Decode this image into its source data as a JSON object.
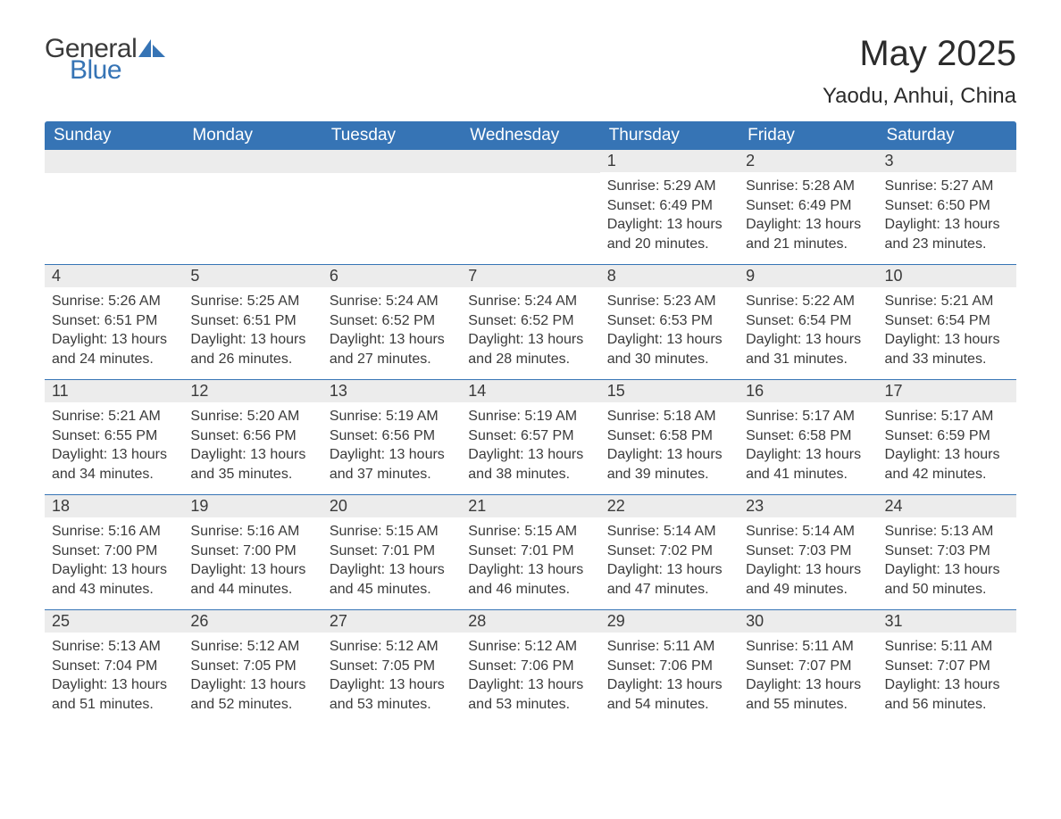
{
  "logo": {
    "text1": "General",
    "text2": "Blue"
  },
  "title": "May 2025",
  "location": "Yaodu, Anhui, China",
  "colors": {
    "header_bg": "#3674b5",
    "header_text": "#ffffff",
    "day_number_bg": "#ececec",
    "row_divider": "#3674b5",
    "body_text": "#3a3a3a",
    "logo_blue": "#3674b5",
    "page_bg": "#ffffff"
  },
  "typography": {
    "title_fontsize": 40,
    "location_fontsize": 24,
    "weekday_fontsize": 19,
    "daynum_fontsize": 18,
    "body_fontsize": 16,
    "logo_fontsize": 30
  },
  "weekdays": [
    "Sunday",
    "Monday",
    "Tuesday",
    "Wednesday",
    "Thursday",
    "Friday",
    "Saturday"
  ],
  "weeks": [
    [
      {
        "n": "",
        "sunrise": "",
        "sunset": "",
        "daylight": ""
      },
      {
        "n": "",
        "sunrise": "",
        "sunset": "",
        "daylight": ""
      },
      {
        "n": "",
        "sunrise": "",
        "sunset": "",
        "daylight": ""
      },
      {
        "n": "",
        "sunrise": "",
        "sunset": "",
        "daylight": ""
      },
      {
        "n": "1",
        "sunrise": "Sunrise: 5:29 AM",
        "sunset": "Sunset: 6:49 PM",
        "daylight": "Daylight: 13 hours and 20 minutes."
      },
      {
        "n": "2",
        "sunrise": "Sunrise: 5:28 AM",
        "sunset": "Sunset: 6:49 PM",
        "daylight": "Daylight: 13 hours and 21 minutes."
      },
      {
        "n": "3",
        "sunrise": "Sunrise: 5:27 AM",
        "sunset": "Sunset: 6:50 PM",
        "daylight": "Daylight: 13 hours and 23 minutes."
      }
    ],
    [
      {
        "n": "4",
        "sunrise": "Sunrise: 5:26 AM",
        "sunset": "Sunset: 6:51 PM",
        "daylight": "Daylight: 13 hours and 24 minutes."
      },
      {
        "n": "5",
        "sunrise": "Sunrise: 5:25 AM",
        "sunset": "Sunset: 6:51 PM",
        "daylight": "Daylight: 13 hours and 26 minutes."
      },
      {
        "n": "6",
        "sunrise": "Sunrise: 5:24 AM",
        "sunset": "Sunset: 6:52 PM",
        "daylight": "Daylight: 13 hours and 27 minutes."
      },
      {
        "n": "7",
        "sunrise": "Sunrise: 5:24 AM",
        "sunset": "Sunset: 6:52 PM",
        "daylight": "Daylight: 13 hours and 28 minutes."
      },
      {
        "n": "8",
        "sunrise": "Sunrise: 5:23 AM",
        "sunset": "Sunset: 6:53 PM",
        "daylight": "Daylight: 13 hours and 30 minutes."
      },
      {
        "n": "9",
        "sunrise": "Sunrise: 5:22 AM",
        "sunset": "Sunset: 6:54 PM",
        "daylight": "Daylight: 13 hours and 31 minutes."
      },
      {
        "n": "10",
        "sunrise": "Sunrise: 5:21 AM",
        "sunset": "Sunset: 6:54 PM",
        "daylight": "Daylight: 13 hours and 33 minutes."
      }
    ],
    [
      {
        "n": "11",
        "sunrise": "Sunrise: 5:21 AM",
        "sunset": "Sunset: 6:55 PM",
        "daylight": "Daylight: 13 hours and 34 minutes."
      },
      {
        "n": "12",
        "sunrise": "Sunrise: 5:20 AM",
        "sunset": "Sunset: 6:56 PM",
        "daylight": "Daylight: 13 hours and 35 minutes."
      },
      {
        "n": "13",
        "sunrise": "Sunrise: 5:19 AM",
        "sunset": "Sunset: 6:56 PM",
        "daylight": "Daylight: 13 hours and 37 minutes."
      },
      {
        "n": "14",
        "sunrise": "Sunrise: 5:19 AM",
        "sunset": "Sunset: 6:57 PM",
        "daylight": "Daylight: 13 hours and 38 minutes."
      },
      {
        "n": "15",
        "sunrise": "Sunrise: 5:18 AM",
        "sunset": "Sunset: 6:58 PM",
        "daylight": "Daylight: 13 hours and 39 minutes."
      },
      {
        "n": "16",
        "sunrise": "Sunrise: 5:17 AM",
        "sunset": "Sunset: 6:58 PM",
        "daylight": "Daylight: 13 hours and 41 minutes."
      },
      {
        "n": "17",
        "sunrise": "Sunrise: 5:17 AM",
        "sunset": "Sunset: 6:59 PM",
        "daylight": "Daylight: 13 hours and 42 minutes."
      }
    ],
    [
      {
        "n": "18",
        "sunrise": "Sunrise: 5:16 AM",
        "sunset": "Sunset: 7:00 PM",
        "daylight": "Daylight: 13 hours and 43 minutes."
      },
      {
        "n": "19",
        "sunrise": "Sunrise: 5:16 AM",
        "sunset": "Sunset: 7:00 PM",
        "daylight": "Daylight: 13 hours and 44 minutes."
      },
      {
        "n": "20",
        "sunrise": "Sunrise: 5:15 AM",
        "sunset": "Sunset: 7:01 PM",
        "daylight": "Daylight: 13 hours and 45 minutes."
      },
      {
        "n": "21",
        "sunrise": "Sunrise: 5:15 AM",
        "sunset": "Sunset: 7:01 PM",
        "daylight": "Daylight: 13 hours and 46 minutes."
      },
      {
        "n": "22",
        "sunrise": "Sunrise: 5:14 AM",
        "sunset": "Sunset: 7:02 PM",
        "daylight": "Daylight: 13 hours and 47 minutes."
      },
      {
        "n": "23",
        "sunrise": "Sunrise: 5:14 AM",
        "sunset": "Sunset: 7:03 PM",
        "daylight": "Daylight: 13 hours and 49 minutes."
      },
      {
        "n": "24",
        "sunrise": "Sunrise: 5:13 AM",
        "sunset": "Sunset: 7:03 PM",
        "daylight": "Daylight: 13 hours and 50 minutes."
      }
    ],
    [
      {
        "n": "25",
        "sunrise": "Sunrise: 5:13 AM",
        "sunset": "Sunset: 7:04 PM",
        "daylight": "Daylight: 13 hours and 51 minutes."
      },
      {
        "n": "26",
        "sunrise": "Sunrise: 5:12 AM",
        "sunset": "Sunset: 7:05 PM",
        "daylight": "Daylight: 13 hours and 52 minutes."
      },
      {
        "n": "27",
        "sunrise": "Sunrise: 5:12 AM",
        "sunset": "Sunset: 7:05 PM",
        "daylight": "Daylight: 13 hours and 53 minutes."
      },
      {
        "n": "28",
        "sunrise": "Sunrise: 5:12 AM",
        "sunset": "Sunset: 7:06 PM",
        "daylight": "Daylight: 13 hours and 53 minutes."
      },
      {
        "n": "29",
        "sunrise": "Sunrise: 5:11 AM",
        "sunset": "Sunset: 7:06 PM",
        "daylight": "Daylight: 13 hours and 54 minutes."
      },
      {
        "n": "30",
        "sunrise": "Sunrise: 5:11 AM",
        "sunset": "Sunset: 7:07 PM",
        "daylight": "Daylight: 13 hours and 55 minutes."
      },
      {
        "n": "31",
        "sunrise": "Sunrise: 5:11 AM",
        "sunset": "Sunset: 7:07 PM",
        "daylight": "Daylight: 13 hours and 56 minutes."
      }
    ]
  ]
}
